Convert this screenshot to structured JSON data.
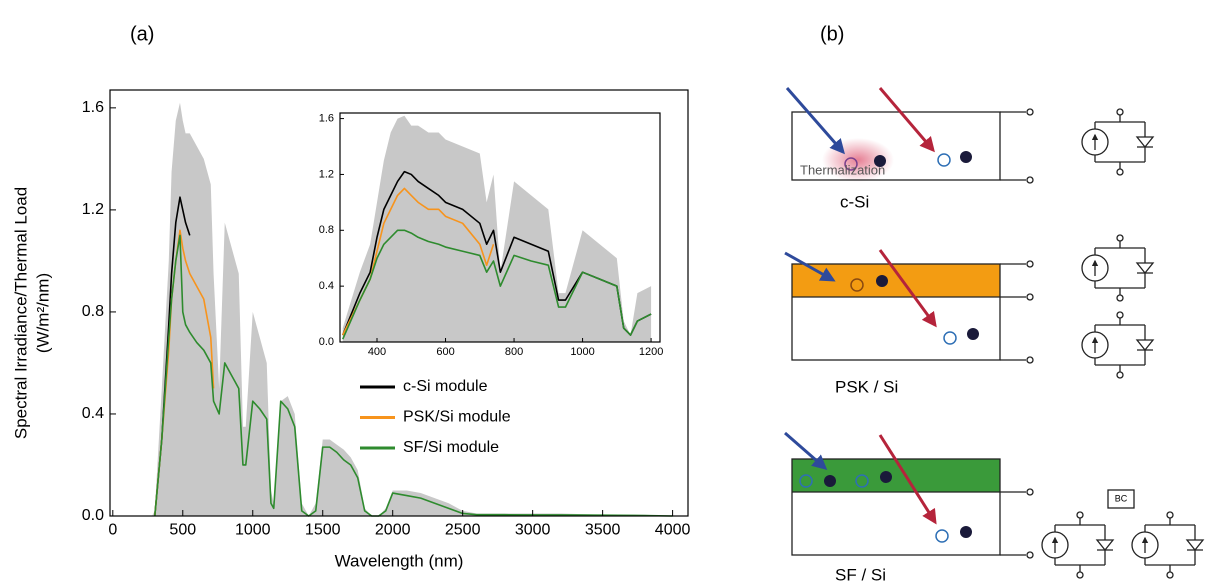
{
  "chart_data": [
    {
      "type": "line",
      "panel_label": "(a)",
      "xlabel": "Wavelength (nm)",
      "ylabel": [
        "Spectral Irradiance/Thermal Load",
        "(W/m²/nm)"
      ],
      "x": [
        280,
        300,
        350,
        400,
        420,
        450,
        480,
        500,
        520,
        550,
        600,
        650,
        700,
        720,
        760,
        800,
        850,
        900,
        930,
        950,
        1000,
        1050,
        1100,
        1130,
        1150,
        1200,
        1250,
        1300,
        1350,
        1400,
        1450,
        1500,
        1550,
        1600,
        1650,
        1700,
        1750,
        1800,
        1850,
        1900,
        1950,
        2000,
        2100,
        2200,
        2300,
        2400,
        2500,
        2600,
        2800,
        3000,
        3200,
        3500,
        3800,
        4000
      ],
      "series": [
        {
          "color": "#c8c8c8",
          "fill": true,
          "values": [
            0,
            0.02,
            0.5,
            1.0,
            1.35,
            1.55,
            1.62,
            1.55,
            1.5,
            1.5,
            1.45,
            1.4,
            1.3,
            0.95,
            0.5,
            1.15,
            1.05,
            0.95,
            0.35,
            0.35,
            0.8,
            0.7,
            0.6,
            0.1,
            0.05,
            0.45,
            0.47,
            0.4,
            0.05,
            0,
            0.05,
            0.3,
            0.3,
            0.28,
            0.26,
            0.23,
            0.18,
            0.03,
            0,
            0,
            0.03,
            0.1,
            0.1,
            0.09,
            0.07,
            0.05,
            0.02,
            0.01,
            0.01,
            0.01,
            0.01,
            0.005,
            0.005,
            0
          ]
        },
        {
          "name": "c-Si module",
          "color": "#000000",
          "values": [
            null,
            0,
            0.3,
            0.75,
            0.95,
            1.15,
            1.25,
            1.2,
            1.15,
            1.1,
            null,
            null,
            null,
            null,
            null,
            null,
            null,
            null,
            null,
            null,
            null,
            null,
            null,
            null,
            null,
            null,
            null,
            null,
            null,
            null,
            null,
            null,
            null,
            null,
            null,
            null,
            null,
            null,
            null,
            null,
            null,
            null,
            null,
            null,
            null,
            null,
            null,
            null,
            null,
            null,
            null,
            null,
            null,
            null
          ]
        },
        {
          "name": "PSK/Si module",
          "color": "#f7941d",
          "values": [
            null,
            0,
            0.3,
            0.65,
            0.85,
            1.0,
            1.12,
            1.05,
            1.0,
            0.95,
            0.9,
            0.85,
            0.7,
            0.5,
            null,
            null,
            null,
            null,
            null,
            null,
            null,
            null,
            null,
            null,
            null,
            null,
            null,
            null,
            null,
            null,
            null,
            null,
            null,
            null,
            null,
            null,
            null,
            null,
            null,
            null,
            null,
            null,
            null,
            null,
            null,
            null,
            null,
            null,
            null,
            null,
            null,
            null,
            null,
            null
          ]
        },
        {
          "name": "SF/Si module",
          "color": "#2e8b2e",
          "values": [
            null,
            0,
            0.3,
            0.7,
            0.85,
            1.0,
            1.1,
            0.8,
            0.75,
            0.72,
            0.68,
            0.65,
            0.6,
            0.45,
            0.4,
            0.6,
            0.55,
            0.5,
            0.2,
            0.2,
            0.45,
            0.42,
            0.38,
            0.05,
            0.03,
            0.45,
            0.42,
            0.35,
            0.02,
            0,
            0.02,
            0.27,
            0.27,
            0.25,
            0.22,
            0.2,
            0.15,
            0.02,
            0,
            0,
            0.02,
            0.09,
            0.08,
            0.07,
            0.05,
            0.03,
            0.01,
            0.005,
            0.005,
            0.004,
            0.004,
            0.003,
            0.002,
            0
          ]
        }
      ],
      "xlim": [
        -20,
        4110
      ],
      "xticks": [
        0,
        500,
        1000,
        1500,
        2000,
        2500,
        3000,
        3500,
        4000
      ],
      "ylim": [
        0,
        1.67
      ],
      "yticks": [
        {
          "value": 0,
          "label": "0.0"
        },
        0.4,
        0.8,
        1.2,
        1.6
      ],
      "legend": "lower right"
    },
    {
      "type": "line",
      "x": [
        300,
        350,
        380,
        400,
        420,
        440,
        460,
        480,
        500,
        520,
        550,
        580,
        600,
        650,
        700,
        720,
        740,
        760,
        800,
        850,
        900,
        930,
        950,
        1000,
        1050,
        1100,
        1120,
        1140,
        1160,
        1200
      ],
      "series": [
        {
          "color": "#c8c8c8",
          "fill": true,
          "values": [
            0.1,
            0.5,
            0.7,
            1.0,
            1.3,
            1.5,
            1.6,
            1.62,
            1.55,
            1.55,
            1.5,
            1.5,
            1.45,
            1.4,
            1.35,
            1.0,
            1.2,
            0.5,
            1.15,
            1.05,
            0.95,
            0.35,
            0.35,
            0.8,
            0.7,
            0.6,
            0.15,
            0.05,
            0.35,
            0.4
          ]
        },
        {
          "color": "#000000",
          "values": [
            0.05,
            0.35,
            0.5,
            0.75,
            0.95,
            1.05,
            1.15,
            1.22,
            1.2,
            1.15,
            1.1,
            1.05,
            1.0,
            0.95,
            0.85,
            0.7,
            0.8,
            0.5,
            0.75,
            0.7,
            0.65,
            0.3,
            0.3,
            0.5,
            0.45,
            0.4,
            0.1,
            0.05,
            0.15,
            0.2
          ]
        },
        {
          "color": "#f7941d",
          "values": [
            0.05,
            0.3,
            0.45,
            0.65,
            0.85,
            0.95,
            1.05,
            1.1,
            1.05,
            1.0,
            0.95,
            0.95,
            0.9,
            0.85,
            0.7,
            0.55,
            0.7,
            null,
            null,
            null,
            null,
            null,
            null,
            null,
            null,
            null,
            null,
            null,
            null,
            null
          ]
        },
        {
          "color": "#2e8b2e",
          "values": [
            0.02,
            0.3,
            0.45,
            0.6,
            0.7,
            0.75,
            0.8,
            0.8,
            0.78,
            0.75,
            0.72,
            0.7,
            0.68,
            0.65,
            0.62,
            0.5,
            0.58,
            0.4,
            0.62,
            0.58,
            0.55,
            0.25,
            0.25,
            0.5,
            0.45,
            0.4,
            0.1,
            0.05,
            0.15,
            0.2
          ]
        }
      ],
      "xlim": [
        292,
        1226
      ],
      "xticks": [
        400,
        600,
        800,
        1000,
        1200
      ],
      "ylim": [
        0,
        1.64
      ],
      "yticks": [
        {
          "value": 0,
          "label": "0.0"
        },
        0.4,
        0.8,
        1.2,
        1.6
      ]
    }
  ],
  "diagram": {
    "panel_label": "(b)",
    "cells": [
      {
        "label": "c-Si",
        "annotation": "Thermalization"
      },
      {
        "label": "PSK / Si"
      },
      {
        "label": "SF / Si",
        "circuit_label": "BC"
      }
    ]
  }
}
